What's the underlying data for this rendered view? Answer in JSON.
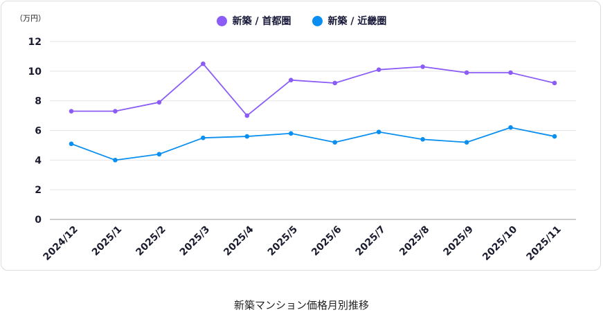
{
  "chart_data": {
    "type": "line",
    "title": "新築マンション価格月別推移",
    "unit_label": "（万円）",
    "categories": [
      "2024/12",
      "2025/1",
      "2025/2",
      "2025/3",
      "2025/4",
      "2025/5",
      "2025/6",
      "2025/7",
      "2025/8",
      "2025/9",
      "2025/10",
      "2025/11"
    ],
    "series": [
      {
        "name": "新築 / 首都圏",
        "color": "#8b5cf6",
        "values": [
          7.3,
          7.3,
          7.9,
          10.5,
          7.0,
          9.4,
          9.2,
          10.1,
          10.3,
          9.9,
          9.9,
          9.2
        ]
      },
      {
        "name": "新築 / 近畿圏",
        "color": "#0a8ff0",
        "values": [
          5.1,
          4.0,
          4.4,
          5.5,
          5.6,
          5.8,
          5.2,
          5.9,
          5.4,
          5.2,
          6.2,
          5.6
        ]
      }
    ],
    "y_ticks": [
      0,
      2,
      4,
      6,
      8,
      10,
      12
    ],
    "ylim": [
      0,
      12
    ],
    "legend_position": "top-center",
    "grid": true
  }
}
